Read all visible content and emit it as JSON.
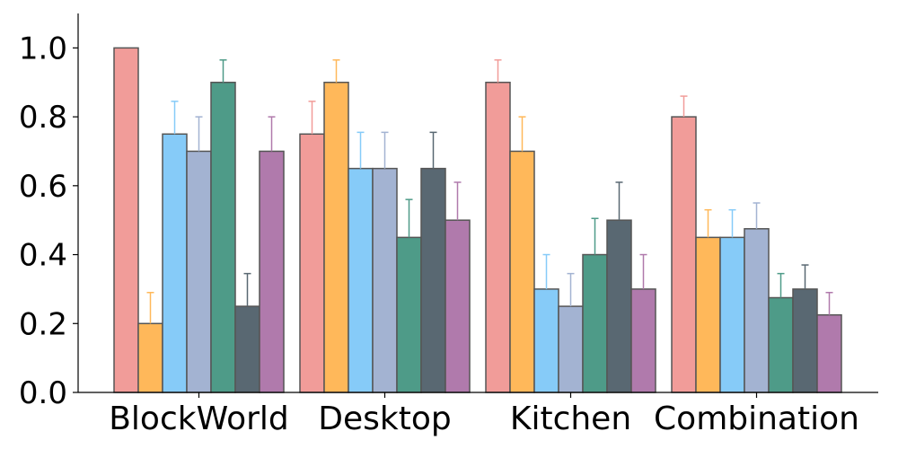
{
  "chart_data": {
    "type": "bar",
    "title": "",
    "xlabel": "",
    "ylabel": "",
    "ylim": [
      0,
      1.1
    ],
    "yticks": [
      "0.0",
      "0.2",
      "0.4",
      "0.6",
      "0.8",
      "1.0"
    ],
    "grid": false,
    "legend": "none",
    "categories": [
      "BlockWorld",
      "Desktop",
      "Kitchen",
      "Combination"
    ],
    "series": [
      {
        "color": "#f19c99",
        "values": [
          1.0,
          0.75,
          0.9,
          0.8
        ],
        "errors": [
          0.0,
          0.095,
          0.065,
          0.06
        ]
      },
      {
        "color": "#ffb85a",
        "values": [
          0.2,
          0.9,
          0.7,
          0.45
        ],
        "errors": [
          0.09,
          0.065,
          0.1,
          0.08
        ]
      },
      {
        "color": "#86cbf8",
        "values": [
          0.75,
          0.65,
          0.3,
          0.45
        ],
        "errors": [
          0.095,
          0.105,
          0.1,
          0.08
        ]
      },
      {
        "color": "#a3b3d2",
        "values": [
          0.7,
          0.65,
          0.25,
          0.475
        ],
        "errors": [
          0.1,
          0.105,
          0.095,
          0.075
        ]
      },
      {
        "color": "#4e9b88",
        "values": [
          0.9,
          0.45,
          0.4,
          0.275
        ],
        "errors": [
          0.065,
          0.11,
          0.105,
          0.07
        ]
      },
      {
        "color": "#596872",
        "values": [
          0.25,
          0.65,
          0.5,
          0.3
        ],
        "errors": [
          0.095,
          0.105,
          0.11,
          0.07
        ]
      },
      {
        "color": "#b07aac",
        "values": [
          0.7,
          0.5,
          0.3,
          0.225
        ],
        "errors": [
          0.1,
          0.11,
          0.1,
          0.065
        ]
      }
    ]
  }
}
